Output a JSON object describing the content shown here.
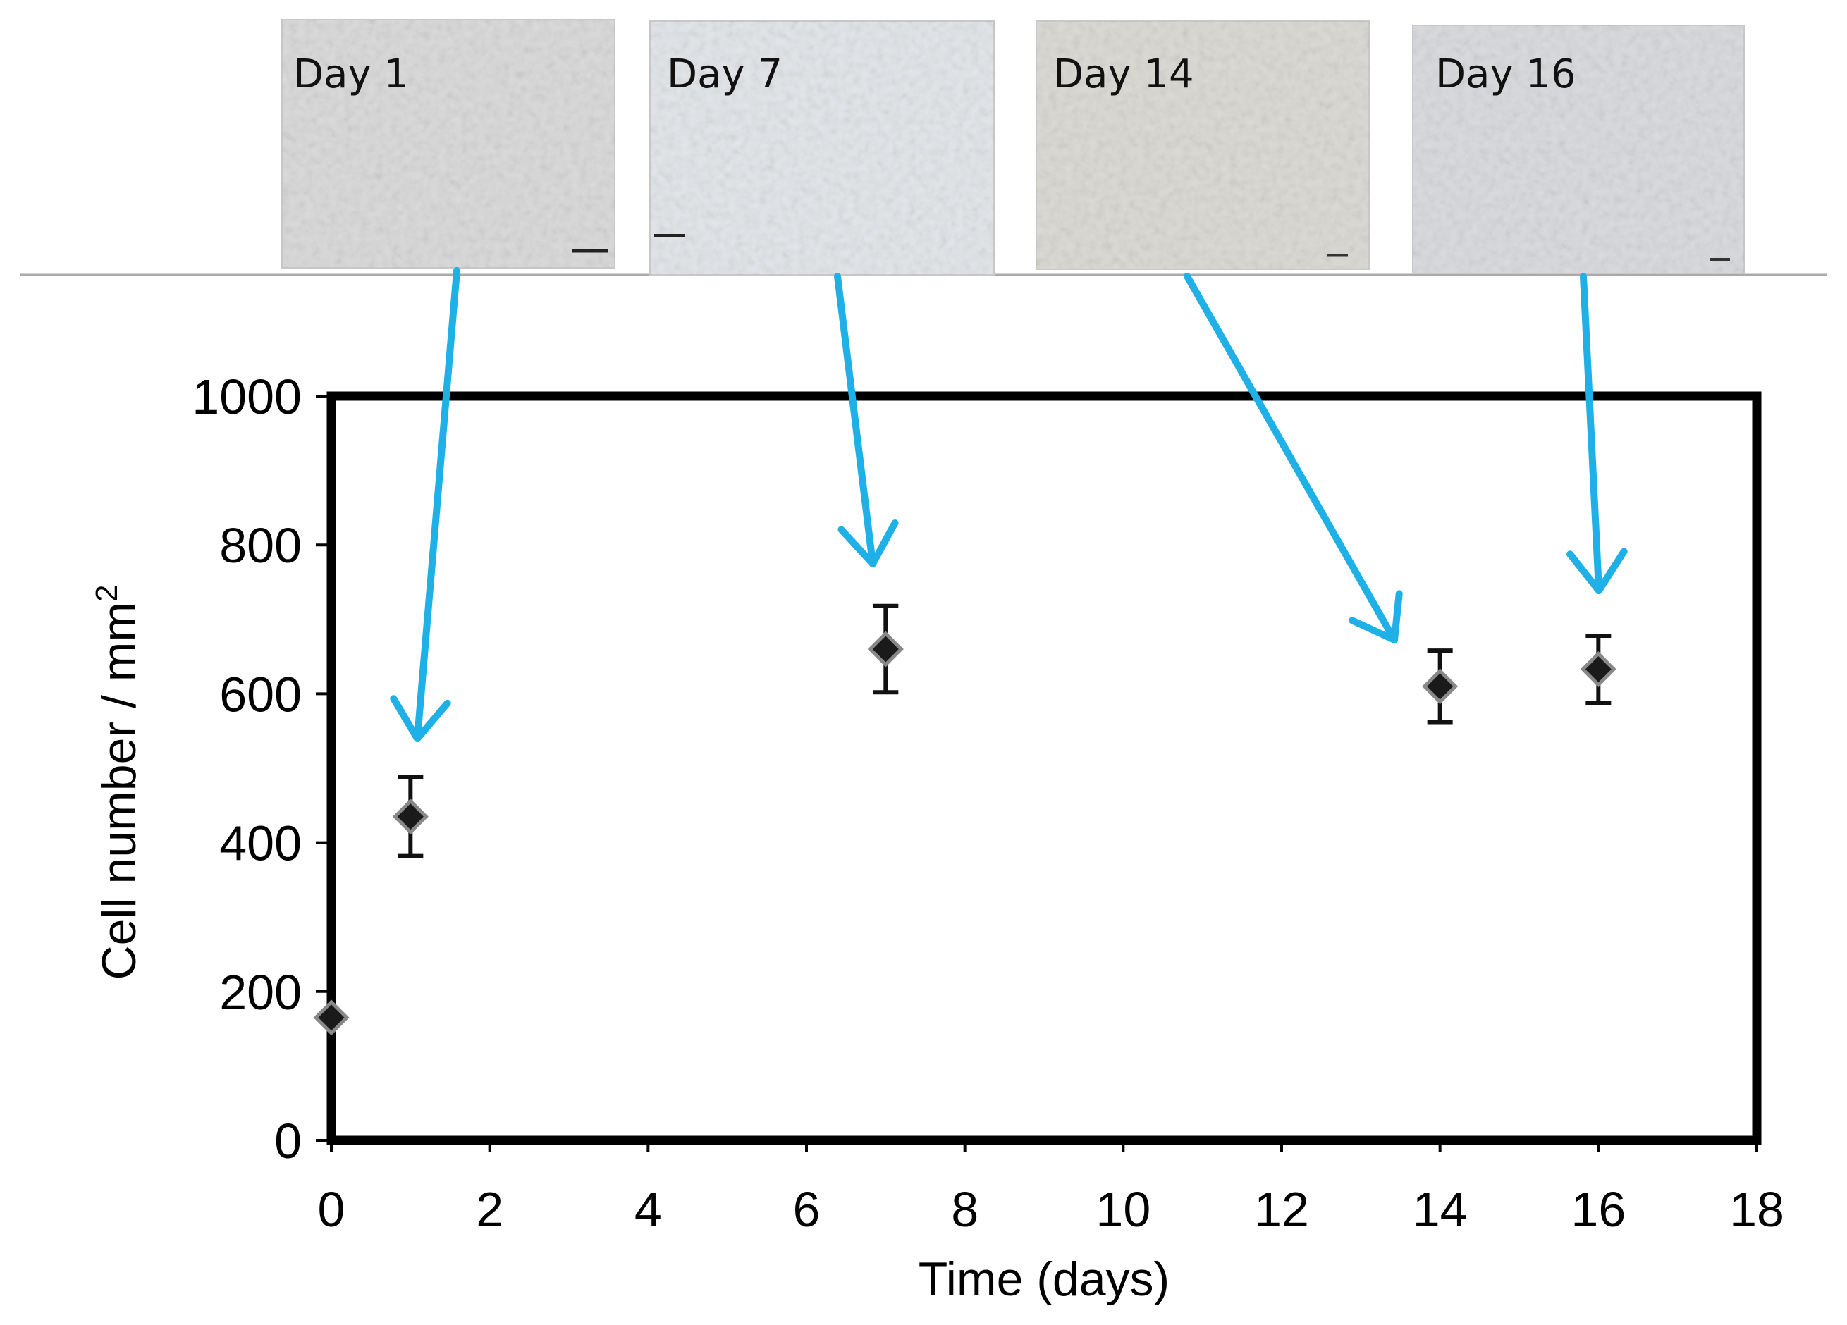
{
  "micrographs": [
    {
      "label": "Day 1",
      "day": 1,
      "tone": "#d8d8d8"
    },
    {
      "label": "Day 7",
      "day": 7,
      "tone": "#e2e5e9"
    },
    {
      "label": "Day 14",
      "day": 14,
      "tone": "#d9d8d2"
    },
    {
      "label": "Day 16",
      "day": 16,
      "tone": "#d7d9dc"
    }
  ],
  "colors": {
    "arrow": "#1fb0e8",
    "marker": "#1a1a1a",
    "marker_outline": "#888888",
    "frame": "#000000",
    "divider": "#aaaaaa"
  },
  "chart_data": {
    "type": "scatter",
    "xlabel": "Time (days)",
    "ylabel": "Cell number / mm",
    "ylabel_superscript": "2",
    "xlim": [
      0,
      18
    ],
    "ylim": [
      0,
      1000
    ],
    "xticks": [
      0,
      2,
      4,
      6,
      8,
      10,
      12,
      14,
      16,
      18
    ],
    "yticks": [
      0,
      200,
      400,
      600,
      800,
      1000
    ],
    "grid": false,
    "points": [
      {
        "x": 0,
        "y": 165,
        "err": 0
      },
      {
        "x": 1,
        "y": 435,
        "err": 53
      },
      {
        "x": 7,
        "y": 660,
        "err": 58
      },
      {
        "x": 14,
        "y": 610,
        "err": 48
      },
      {
        "x": 16,
        "y": 633,
        "err": 45
      }
    ]
  }
}
